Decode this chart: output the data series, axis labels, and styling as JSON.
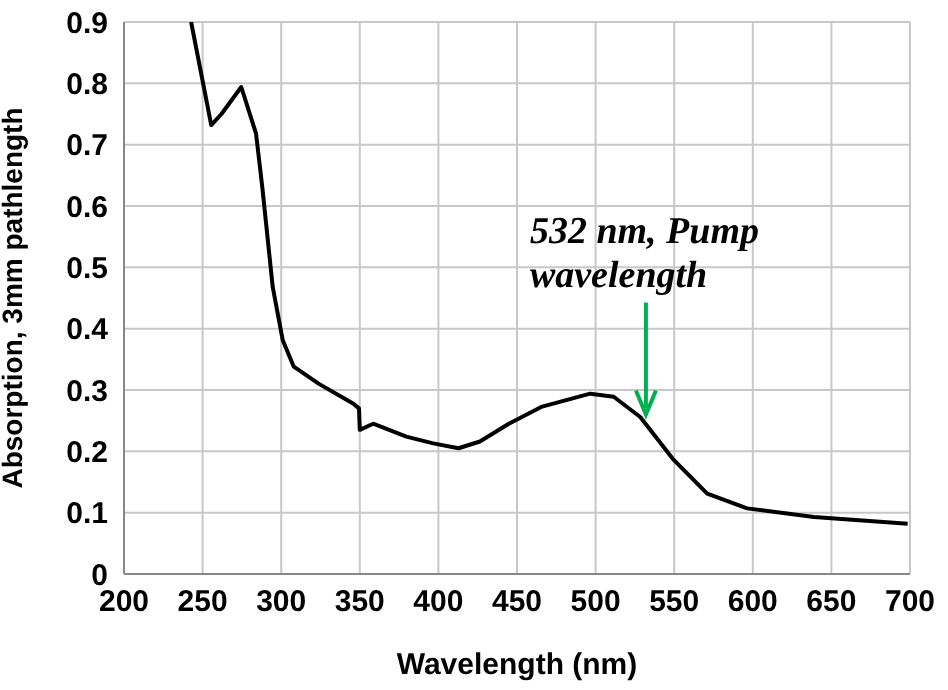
{
  "chart_data": {
    "type": "line",
    "xlabel": "Wavelength (nm)",
    "ylabel": "Absorption, 3mm pathlength",
    "xlim": [
      200,
      700
    ],
    "xticks": [
      200,
      250,
      300,
      350,
      400,
      450,
      500,
      550,
      600,
      650,
      700
    ],
    "ylim": [
      0,
      0.9
    ],
    "yticks": [
      0,
      0.1,
      0.2,
      0.3,
      0.4,
      0.5,
      0.6,
      0.7,
      0.8,
      0.9
    ],
    "grid": true,
    "marker": "none",
    "line_style": "solid",
    "annotations": [
      {
        "text": "532 nm, Pump wavelength",
        "x": 532,
        "y": 0.26
      }
    ],
    "series": [
      {
        "color": "#000000",
        "x": [
          242.7,
          255.5,
          262,
          274.6,
          284,
          288,
          294.6,
          301,
          308,
          324,
          345.7,
          349.5,
          350,
          358.5,
          379.6,
          396.7,
          412.8,
          426.4,
          444.8,
          466,
          496.6,
          511.5,
          528.4,
          549.7,
          571,
          596.4,
          638.9,
          698.5
        ],
        "values": [
          0.9,
          0.732,
          0.75,
          0.794,
          0.718,
          0.63,
          0.468,
          0.381,
          0.338,
          0.31,
          0.278,
          0.27,
          0.235,
          0.245,
          0.224,
          0.213,
          0.205,
          0.216,
          0.245,
          0.273,
          0.294,
          0.289,
          0.256,
          0.186,
          0.131,
          0.107,
          0.093,
          0.082
        ]
      }
    ]
  }
}
